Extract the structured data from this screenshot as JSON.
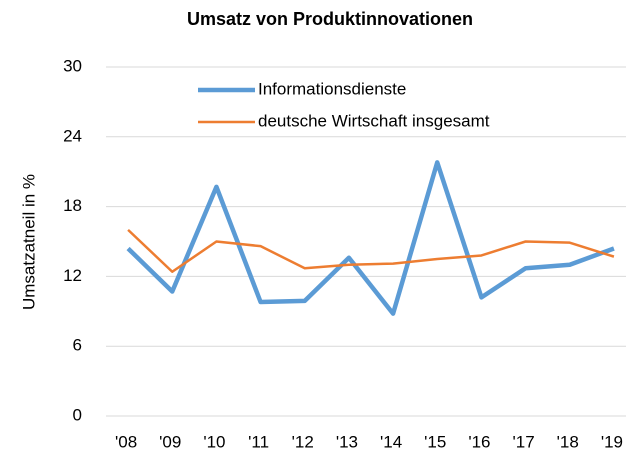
{
  "chart_data": {
    "type": "line",
    "title": "Umsatz von Produktinnovationen",
    "ylabel": "Umsatzatneil in %",
    "categories": [
      "'08",
      "'09",
      "'10",
      "'11",
      "'12",
      "'13",
      "'14",
      "'15",
      "'16",
      "'17",
      "'18",
      "'19"
    ],
    "series": [
      {
        "name": "Informationsdienste",
        "color": "#5b9bd5",
        "values": [
          14.4,
          10.7,
          19.7,
          9.8,
          9.9,
          13.6,
          8.8,
          21.8,
          10.2,
          12.7,
          13.0,
          14.4
        ]
      },
      {
        "name": "deutsche Wirtschaft insgesamt",
        "color": "#ed7d31",
        "values": [
          16.0,
          12.4,
          15.0,
          14.6,
          12.7,
          13.0,
          13.1,
          13.5,
          13.8,
          15.0,
          14.9,
          13.7
        ]
      }
    ],
    "ylim": [
      0,
      30
    ],
    "yticks": [
      0,
      6,
      12,
      18,
      24,
      30
    ],
    "grid": true,
    "legend": "top"
  }
}
